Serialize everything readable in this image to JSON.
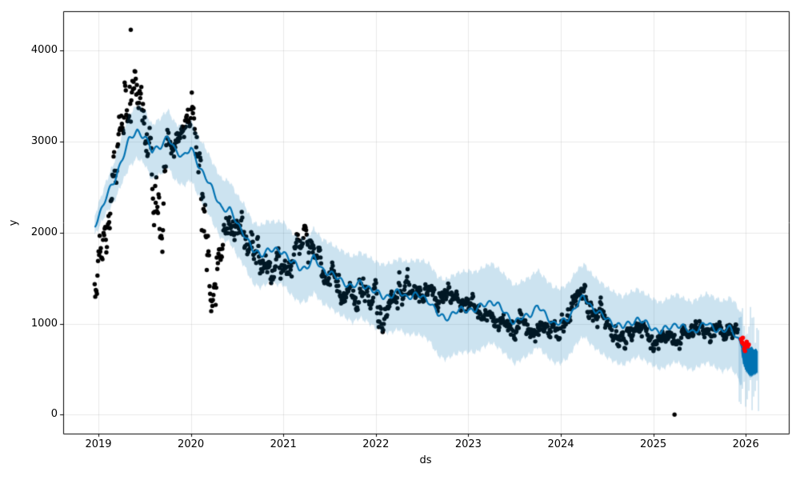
{
  "figure": {
    "background": "#ffffff"
  },
  "axes": {
    "xlabel": "ds",
    "ylabel": "y",
    "x_ticks": [
      {
        "label": "2019",
        "value": 2019
      },
      {
        "label": "2020",
        "value": 2020
      },
      {
        "label": "2021",
        "value": 2021
      },
      {
        "label": "2022",
        "value": 2022
      },
      {
        "label": "2023",
        "value": 2023
      },
      {
        "label": "2024",
        "value": 2024
      },
      {
        "label": "2025",
        "value": 2025
      },
      {
        "label": "2026",
        "value": 2026
      }
    ],
    "y_ticks": [
      {
        "label": "0",
        "value": 0
      },
      {
        "label": "1000",
        "value": 1000
      },
      {
        "label": "2000",
        "value": 2000
      },
      {
        "label": "3000",
        "value": 3000
      },
      {
        "label": "4000",
        "value": 4000
      }
    ],
    "xlim": [
      2018.62,
      2026.47
    ],
    "ylim": [
      -208,
      4434
    ],
    "grid": true
  },
  "colors": {
    "observed_points": "#000000",
    "anomaly_points": "#ff0000",
    "forecast_line": "#0072B2",
    "band_fill": "rgba(0,114,178,0.2)",
    "band_stripe": "rgba(0,114,178,0.28)",
    "tail_fill": "#0072B2",
    "grid": "rgba(0,0,0,0.09)",
    "spine": "#000000"
  },
  "chart_data": {
    "type": "scatter",
    "title": "",
    "xlabel": "ds",
    "ylabel": "y",
    "description": "Prophet-style time-series forecast: black observed daily points 2019-2026, blue yhat forecast line with light-blue uncertainty interval, red anomaly points and dense oscillating forecast segment at the end (early 2026). Values estimated from axes.",
    "observed_points": {
      "t_start": 2018.96,
      "t_end": 2025.92,
      "step_years": 0.006,
      "seed": 42,
      "ar_coef": 0.72,
      "center_knots": [
        [
          2018.96,
          1520
        ],
        [
          2019.04,
          1700
        ],
        [
          2019.12,
          2100
        ],
        [
          2019.21,
          2900
        ],
        [
          2019.29,
          3350
        ],
        [
          2019.37,
          3600
        ],
        [
          2019.46,
          3250
        ],
        [
          2019.54,
          3050
        ],
        [
          2019.6,
          2250
        ],
        [
          2019.67,
          2300
        ],
        [
          2019.75,
          2850
        ],
        [
          2019.83,
          2950
        ],
        [
          2019.92,
          3300
        ],
        [
          2020.0,
          3400
        ],
        [
          2020.04,
          3300
        ],
        [
          2020.08,
          2500
        ],
        [
          2020.13,
          2050
        ],
        [
          2020.17,
          1700
        ],
        [
          2020.21,
          1450
        ],
        [
          2020.25,
          1600
        ],
        [
          2020.33,
          1850
        ],
        [
          2020.42,
          2050
        ],
        [
          2020.5,
          2050
        ],
        [
          2020.58,
          1950
        ],
        [
          2020.67,
          1750
        ],
        [
          2020.75,
          1720
        ],
        [
          2020.83,
          1650
        ],
        [
          2020.92,
          1560
        ],
        [
          2021.0,
          1560
        ],
        [
          2021.08,
          1520
        ],
        [
          2021.17,
          1850
        ],
        [
          2021.25,
          1900
        ],
        [
          2021.33,
          1750
        ],
        [
          2021.42,
          1560
        ],
        [
          2021.5,
          1500
        ],
        [
          2021.58,
          1440
        ],
        [
          2021.67,
          1350
        ],
        [
          2021.75,
          1310
        ],
        [
          2021.83,
          1350
        ],
        [
          2021.92,
          1300
        ],
        [
          2022.0,
          1200
        ],
        [
          2022.08,
          1000
        ],
        [
          2022.17,
          1260
        ],
        [
          2022.25,
          1310
        ],
        [
          2022.33,
          1340
        ],
        [
          2022.42,
          1350
        ],
        [
          2022.5,
          1360
        ],
        [
          2022.58,
          1300
        ],
        [
          2022.67,
          1240
        ],
        [
          2022.75,
          1310
        ],
        [
          2022.83,
          1290
        ],
        [
          2022.92,
          1240
        ],
        [
          2023.0,
          1210
        ],
        [
          2023.08,
          1200
        ],
        [
          2023.17,
          1140
        ],
        [
          2023.25,
          1090
        ],
        [
          2023.33,
          1000
        ],
        [
          2023.42,
          950
        ],
        [
          2023.5,
          960
        ],
        [
          2023.58,
          1000
        ],
        [
          2023.67,
          950
        ],
        [
          2023.75,
          940
        ],
        [
          2023.83,
          900
        ],
        [
          2023.92,
          950
        ],
        [
          2024.0,
          960
        ],
        [
          2024.08,
          1090
        ],
        [
          2024.17,
          1390
        ],
        [
          2024.25,
          1290
        ],
        [
          2024.33,
          1140
        ],
        [
          2024.42,
          1090
        ],
        [
          2024.5,
          1040
        ],
        [
          2024.58,
          890
        ],
        [
          2024.67,
          850
        ],
        [
          2024.75,
          950
        ],
        [
          2024.83,
          940
        ],
        [
          2024.92,
          890
        ],
        [
          2025.0,
          840
        ],
        [
          2025.08,
          800
        ],
        [
          2025.17,
          850
        ],
        [
          2025.25,
          810
        ],
        [
          2025.33,
          890
        ],
        [
          2025.42,
          900
        ],
        [
          2025.5,
          950
        ],
        [
          2025.58,
          900
        ],
        [
          2025.67,
          950
        ],
        [
          2025.75,
          900
        ],
        [
          2025.83,
          920
        ],
        [
          2025.92,
          880
        ]
      ],
      "sigma_knots": [
        [
          2018.96,
          120
        ],
        [
          2019.25,
          200
        ],
        [
          2019.45,
          180
        ],
        [
          2019.6,
          230
        ],
        [
          2019.8,
          150
        ],
        [
          2020.0,
          130
        ],
        [
          2020.1,
          200
        ],
        [
          2020.21,
          220
        ],
        [
          2020.45,
          120
        ],
        [
          2021.0,
          100
        ],
        [
          2021.5,
          90
        ],
        [
          2022.0,
          100
        ],
        [
          2022.3,
          80
        ],
        [
          2022.6,
          70
        ],
        [
          2023.0,
          60
        ],
        [
          2023.5,
          55
        ],
        [
          2024.0,
          65
        ],
        [
          2024.17,
          75
        ],
        [
          2024.6,
          60
        ],
        [
          2025.0,
          55
        ],
        [
          2025.5,
          50
        ],
        [
          2025.92,
          45
        ]
      ],
      "outliers": [
        [
          2019.35,
          4230
        ],
        [
          2025.23,
          0
        ]
      ]
    },
    "forecast_line": {
      "knots": [
        [
          2018.96,
          2080
        ],
        [
          2019.08,
          2380
        ],
        [
          2019.17,
          2560
        ],
        [
          2019.25,
          2800
        ],
        [
          2019.33,
          3010
        ],
        [
          2019.42,
          3120
        ],
        [
          2019.5,
          3060
        ],
        [
          2019.58,
          2890
        ],
        [
          2019.67,
          2960
        ],
        [
          2019.75,
          3050
        ],
        [
          2019.83,
          2900
        ],
        [
          2019.92,
          2850
        ],
        [
          2020.0,
          2920
        ],
        [
          2020.08,
          2750
        ],
        [
          2020.17,
          2600
        ],
        [
          2020.25,
          2430
        ],
        [
          2020.33,
          2280
        ],
        [
          2020.42,
          2250
        ],
        [
          2020.5,
          2100
        ],
        [
          2020.58,
          1990
        ],
        [
          2020.67,
          1800
        ],
        [
          2020.75,
          1760
        ],
        [
          2020.83,
          1810
        ],
        [
          2020.92,
          1800
        ],
        [
          2021.0,
          1800
        ],
        [
          2021.08,
          1690
        ],
        [
          2021.17,
          1610
        ],
        [
          2021.25,
          1620
        ],
        [
          2021.33,
          1720
        ],
        [
          2021.42,
          1600
        ],
        [
          2021.5,
          1560
        ],
        [
          2021.58,
          1500
        ],
        [
          2021.67,
          1450
        ],
        [
          2021.75,
          1400
        ],
        [
          2021.83,
          1450
        ],
        [
          2021.92,
          1400
        ],
        [
          2022.0,
          1340
        ],
        [
          2022.08,
          1300
        ],
        [
          2022.17,
          1310
        ],
        [
          2022.25,
          1350
        ],
        [
          2022.33,
          1300
        ],
        [
          2022.42,
          1310
        ],
        [
          2022.5,
          1300
        ],
        [
          2022.58,
          1250
        ],
        [
          2022.67,
          1100
        ],
        [
          2022.75,
          1060
        ],
        [
          2022.83,
          1110
        ],
        [
          2022.92,
          1150
        ],
        [
          2023.0,
          1160
        ],
        [
          2023.08,
          1150
        ],
        [
          2023.17,
          1210
        ],
        [
          2023.25,
          1250
        ],
        [
          2023.33,
          1190
        ],
        [
          2023.42,
          1100
        ],
        [
          2023.5,
          1010
        ],
        [
          2023.58,
          1060
        ],
        [
          2023.67,
          1110
        ],
        [
          2023.75,
          1190
        ],
        [
          2023.83,
          1100
        ],
        [
          2023.92,
          1010
        ],
        [
          2024.0,
          1000
        ],
        [
          2024.08,
          1060
        ],
        [
          2024.17,
          1210
        ],
        [
          2024.25,
          1290
        ],
        [
          2024.33,
          1190
        ],
        [
          2024.42,
          1110
        ],
        [
          2024.5,
          1050
        ],
        [
          2024.58,
          1000
        ],
        [
          2024.67,
          960
        ],
        [
          2024.75,
          1010
        ],
        [
          2024.83,
          1050
        ],
        [
          2024.92,
          1000
        ],
        [
          2025.0,
          950
        ],
        [
          2025.08,
          910
        ],
        [
          2025.17,
          960
        ],
        [
          2025.25,
          1000
        ],
        [
          2025.33,
          950
        ],
        [
          2025.42,
          910
        ],
        [
          2025.5,
          960
        ],
        [
          2025.58,
          1000
        ],
        [
          2025.67,
          950
        ],
        [
          2025.75,
          910
        ],
        [
          2025.83,
          950
        ],
        [
          2025.88,
          900
        ],
        [
          2025.92,
          830
        ],
        [
          2025.96,
          745
        ]
      ],
      "wiggle": {
        "freq1": 10,
        "amp1": 26,
        "freq2": 4.5,
        "amp2": 15
      }
    },
    "uncertainty_band": {
      "t_start": 2018.96,
      "t_end": 2025.96,
      "upper_offset_knots": [
        [
          2018.96,
          110
        ],
        [
          2019.3,
          280
        ],
        [
          2019.7,
          300
        ],
        [
          2020.0,
          310
        ],
        [
          2021.0,
          320
        ],
        [
          2022.0,
          340
        ],
        [
          2022.7,
          420
        ],
        [
          2023.0,
          420
        ],
        [
          2023.8,
          400
        ],
        [
          2024.5,
          350
        ],
        [
          2025.0,
          320
        ],
        [
          2025.96,
          340
        ]
      ],
      "lower_offset_knots": [
        [
          2018.96,
          110
        ],
        [
          2019.3,
          290
        ],
        [
          2019.7,
          320
        ],
        [
          2020.0,
          340
        ],
        [
          2021.0,
          370
        ],
        [
          2022.0,
          390
        ],
        [
          2022.7,
          450
        ],
        [
          2023.0,
          470
        ],
        [
          2023.8,
          440
        ],
        [
          2024.5,
          420
        ],
        [
          2025.0,
          410
        ],
        [
          2025.96,
          440
        ]
      ]
    },
    "forecast_tail": {
      "t_start": 2025.95,
      "t_end": 2026.13,
      "top_knots": [
        [
          2025.95,
          800
        ],
        [
          2025.97,
          780
        ],
        [
          2026.0,
          765
        ],
        [
          2026.05,
          745
        ],
        [
          2026.13,
          705
        ]
      ],
      "bottom_knots": [
        [
          2025.95,
          690
        ],
        [
          2025.97,
          560
        ],
        [
          2026.0,
          480
        ],
        [
          2026.05,
          415
        ],
        [
          2026.13,
          460
        ]
      ],
      "stripes": {
        "t_start": 2025.93,
        "t_end": 2026.14,
        "top_center": 1000,
        "top_amp": 150,
        "bottom_center": 220,
        "bottom_amp": 140,
        "spacing_px": 2
      }
    },
    "anomaly_points": [
      [
        2025.95,
        830
      ],
      [
        2025.96,
        795
      ],
      [
        2025.968,
        845
      ],
      [
        2025.976,
        775
      ],
      [
        2025.984,
        725
      ],
      [
        2025.992,
        700
      ],
      [
        2026.0,
        755
      ],
      [
        2026.01,
        800
      ],
      [
        2026.022,
        750
      ],
      [
        2026.032,
        770
      ]
    ]
  }
}
